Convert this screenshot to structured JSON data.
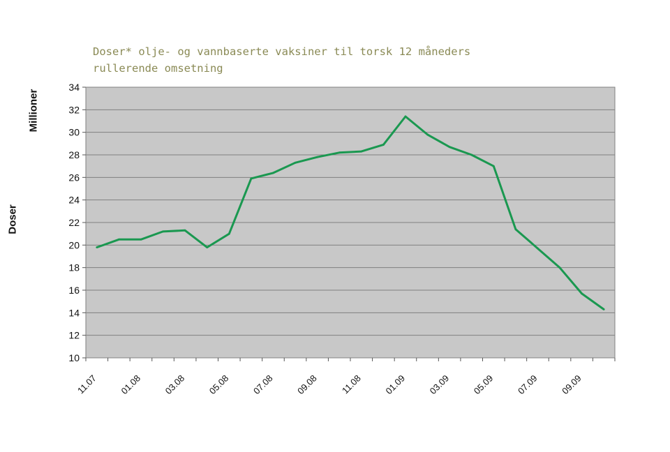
{
  "chart_data": {
    "type": "line",
    "title": "Doser* olje- og vannbaserte vaksiner til torsk 12 måneders\nrullerende omsetning",
    "ylabel": "Doser",
    "yunit": "Millioner",
    "xlabel": "",
    "ylim": [
      10,
      34
    ],
    "yticks": [
      10,
      12,
      14,
      16,
      18,
      20,
      22,
      24,
      26,
      28,
      30,
      32,
      34
    ],
    "x_tick_labels": [
      "11.07",
      "01.08",
      "03.08",
      "05.08",
      "07.08",
      "09.08",
      "11.08",
      "01.09",
      "03.09",
      "05.09",
      "07.09",
      "09.09"
    ],
    "grid": true,
    "background": "#c8c8c8",
    "colors": {
      "line": "#1a9850",
      "title": "#8a8a55"
    },
    "series": [
      {
        "x": [
          "11.07",
          "12.07",
          "01.08",
          "02.08",
          "03.08",
          "04.08",
          "05.08",
          "06.08",
          "07.08",
          "08.08",
          "09.08",
          "10.08",
          "11.08",
          "12.08",
          "01.09",
          "02.09",
          "03.09",
          "04.09",
          "05.09",
          "06.09",
          "07.09",
          "08.09",
          "09.09",
          "10.09"
        ],
        "values": [
          19.8,
          20.5,
          20.5,
          21.2,
          21.3,
          19.8,
          21.0,
          25.9,
          26.4,
          27.3,
          27.8,
          28.2,
          28.3,
          28.9,
          31.4,
          29.8,
          28.7,
          28.0,
          27.0,
          21.4,
          19.7,
          18.0,
          15.7,
          14.3
        ]
      }
    ]
  }
}
